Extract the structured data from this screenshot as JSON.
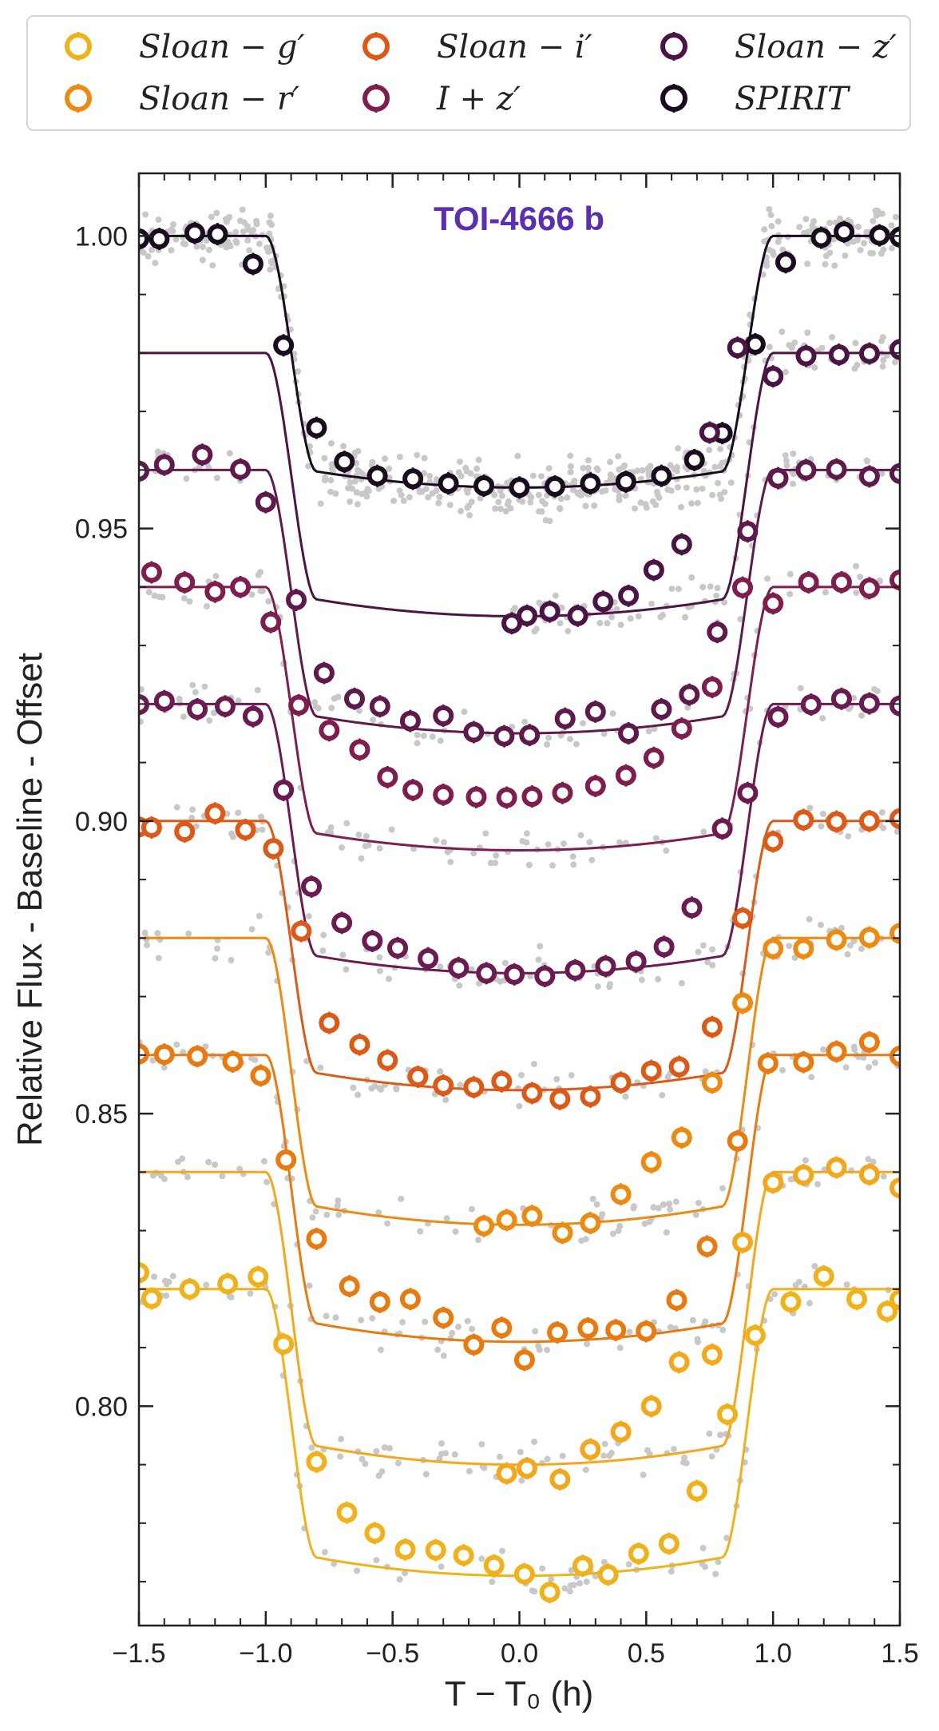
{
  "chart_data": {
    "type": "scatter",
    "title": "TOI-4666 b",
    "title_color": "#5b2fb0",
    "xlabel": "T − T₀ (h)",
    "ylabel": "Relative Flux - Baseline - Offset",
    "xlim": [
      -1.5,
      1.5
    ],
    "ylim": [
      0.7625,
      1.0107
    ],
    "xticks": [
      -1.5,
      -1.0,
      -0.5,
      0.0,
      0.5,
      1.0,
      1.5
    ],
    "xtick_labels": [
      "−1.5",
      "−1.0",
      "−0.5",
      "0.0",
      "0.5",
      "1.0",
      "1.5"
    ],
    "yticks": [
      0.8,
      0.85,
      0.9,
      0.95,
      1.0
    ],
    "ytick_labels": [
      "0.80",
      "0.85",
      "0.90",
      "0.95",
      "1.00"
    ],
    "grid": false,
    "legend_placement": "top, above plot, 3 columns",
    "raw_points_color": "#c8c8c8",
    "legend": [
      {
        "label": "Sloan − g′",
        "color": "#f0b21b"
      },
      {
        "label": "Sloan − r′",
        "color": "#ec8a12"
      },
      {
        "label": "Sloan − i′",
        "color": "#dc5a17"
      },
      {
        "label": "I + z′",
        "color": "#7d1e4e"
      },
      {
        "label": "Sloan − z′",
        "color": "#4a1545"
      },
      {
        "label": "SPIRIT",
        "color": "#1a0b1e"
      }
    ],
    "series": [
      {
        "name": "SPIRIT",
        "color": "#1a0b1e",
        "baseline": 1.0,
        "depth": 0.043,
        "x": [
          -1.5,
          -1.42,
          -1.28,
          -1.19,
          -1.05,
          -0.93,
          -0.8,
          -0.69,
          -0.56,
          -0.42,
          -0.28,
          -0.14,
          0.0,
          0.14,
          0.28,
          0.42,
          0.56,
          0.69,
          0.8,
          0.93,
          1.05,
          1.19,
          1.28,
          1.42,
          1.5
        ],
        "y": [
          0.9995,
          0.9995,
          1.0005,
          1.0003,
          0.9952,
          0.9813,
          0.9672,
          0.9614,
          0.959,
          0.9585,
          0.9577,
          0.9573,
          0.957,
          0.9572,
          0.9577,
          0.958,
          0.959,
          0.9617,
          0.9663,
          0.9815,
          0.9955,
          0.9997,
          1.0007,
          1.0001,
          0.9998
        ]
      },
      {
        "name": "Sloan − z′",
        "color": "#4a1545",
        "baseline": 0.98,
        "depth": 0.045,
        "x0": -1.5,
        "x": [
          -0.03,
          0.03,
          0.12,
          0.23,
          0.33,
          0.43,
          0.53,
          0.64,
          0.75,
          0.86,
          1.0,
          1.13,
          1.26,
          1.38,
          1.5
        ],
        "y": [
          0.9338,
          0.9351,
          0.9358,
          0.9351,
          0.9375,
          0.9385,
          0.9429,
          0.9473,
          0.9664,
          0.9809,
          0.976,
          0.9795,
          0.9797,
          0.9799,
          0.9806
        ]
      },
      {
        "name": "I + z′ (1)",
        "color": "#5e1a4a",
        "baseline": 0.96,
        "depth": 0.045,
        "x": [
          -1.5,
          -1.4,
          -1.25,
          -1.1,
          -1.0,
          -0.88,
          -0.77,
          -0.65,
          -0.55,
          -0.43,
          -0.3,
          -0.18,
          -0.06,
          0.04,
          0.18,
          0.3,
          0.43,
          0.56,
          0.67,
          0.78,
          0.9,
          1.02,
          1.13,
          1.25,
          1.38,
          1.5
        ],
        "y": [
          0.9598,
          0.9609,
          0.9626,
          0.9601,
          0.9545,
          0.9378,
          0.9253,
          0.9209,
          0.9196,
          0.9171,
          0.918,
          0.9152,
          0.9145,
          0.9147,
          0.9175,
          0.9187,
          0.915,
          0.9191,
          0.9216,
          0.9323,
          0.9495,
          0.9586,
          0.96,
          0.9601,
          0.9589,
          0.9594
        ]
      },
      {
        "name": "I + z′ (2)",
        "color": "#7d1e4e",
        "baseline": 0.94,
        "depth": 0.045,
        "x": [
          -1.45,
          -1.32,
          -1.2,
          -1.1,
          -0.98,
          -0.87,
          -0.75,
          -0.63,
          -0.52,
          -0.42,
          -0.3,
          -0.17,
          -0.05,
          0.05,
          0.17,
          0.3,
          0.42,
          0.53,
          0.64,
          0.76,
          0.88,
          1.0,
          1.14,
          1.27,
          1.38,
          1.5
        ],
        "y": [
          0.9425,
          0.9408,
          0.9392,
          0.94,
          0.934,
          0.9198,
          0.9155,
          0.9122,
          0.9075,
          0.9053,
          0.9045,
          0.9041,
          0.904,
          0.9042,
          0.9048,
          0.906,
          0.9078,
          0.9108,
          0.9158,
          0.9229,
          0.9399,
          0.9372,
          0.9408,
          0.9408,
          0.9398,
          0.9412
        ]
      },
      {
        "name": "Sloan − z′ (b)",
        "color": "#6a1b4f",
        "baseline": 0.92,
        "depth": 0.046,
        "x": [
          -1.5,
          -1.4,
          -1.27,
          -1.16,
          -1.05,
          -0.93,
          -0.82,
          -0.7,
          -0.58,
          -0.48,
          -0.36,
          -0.24,
          -0.13,
          -0.02,
          0.1,
          0.22,
          0.34,
          0.46,
          0.57,
          0.68,
          0.8,
          0.9,
          1.02,
          1.15,
          1.27,
          1.38,
          1.5
        ],
        "y": [
          0.9199,
          0.9205,
          0.9191,
          0.9196,
          0.9179,
          0.9053,
          0.8888,
          0.8826,
          0.8795,
          0.8783,
          0.8765,
          0.8749,
          0.874,
          0.8738,
          0.8735,
          0.8745,
          0.8752,
          0.876,
          0.8785,
          0.8852,
          0.8987,
          0.9048,
          0.9178,
          0.9199,
          0.9209,
          0.9201,
          0.9197
        ]
      },
      {
        "name": "Sloan − i′",
        "color": "#dc5a17",
        "baseline": 0.9,
        "depth": 0.046,
        "x": [
          -1.5,
          -1.45,
          -1.32,
          -1.2,
          -1.08,
          -0.97,
          -0.86,
          -0.75,
          -0.63,
          -0.52,
          -0.4,
          -0.3,
          -0.18,
          -0.07,
          0.05,
          0.16,
          0.28,
          0.4,
          0.52,
          0.63,
          0.76,
          0.88,
          1.0,
          1.12,
          1.25,
          1.38,
          1.5
        ],
        "y": [
          0.899,
          0.8989,
          0.8982,
          0.9013,
          0.8985,
          0.8953,
          0.8812,
          0.8655,
          0.8618,
          0.8591,
          0.8563,
          0.8548,
          0.8545,
          0.8555,
          0.8535,
          0.8525,
          0.8529,
          0.8553,
          0.8573,
          0.858,
          0.8648,
          0.8834,
          0.8965,
          0.9002,
          0.8999,
          0.9,
          0.9004
        ]
      },
      {
        "name": "Sloan − r′ (1)",
        "color": "#ec8a12",
        "baseline": 0.88,
        "depth": 0.049,
        "x": [
          -0.14,
          -0.05,
          0.05,
          0.17,
          0.28,
          0.4,
          0.52,
          0.64,
          0.76,
          0.88,
          1.0,
          1.12,
          1.25,
          1.38,
          1.5
        ],
        "y": [
          0.8308,
          0.8318,
          0.8325,
          0.8296,
          0.8313,
          0.8362,
          0.8417,
          0.8459,
          0.8553,
          0.8689,
          0.8782,
          0.8782,
          0.8797,
          0.8801,
          0.8808
        ]
      },
      {
        "name": "Sloan − r′ (2)",
        "color": "#e77a10",
        "baseline": 0.86,
        "depth": 0.049,
        "x": [
          -1.5,
          -1.4,
          -1.27,
          -1.13,
          -1.02,
          -0.92,
          -0.8,
          -0.67,
          -0.55,
          -0.43,
          -0.3,
          -0.18,
          -0.07,
          0.02,
          0.15,
          0.27,
          0.38,
          0.5,
          0.62,
          0.74,
          0.86,
          0.98,
          1.12,
          1.25,
          1.38,
          1.5
        ],
        "y": [
          0.8602,
          0.8601,
          0.8598,
          0.8589,
          0.8565,
          0.8421,
          0.8286,
          0.8205,
          0.8178,
          0.8183,
          0.8151,
          0.8105,
          0.8134,
          0.8079,
          0.8126,
          0.8133,
          0.813,
          0.8128,
          0.8181,
          0.8273,
          0.8453,
          0.8586,
          0.8588,
          0.8606,
          0.8622,
          0.8598
        ]
      },
      {
        "name": "Sloan − g′ (1)",
        "color": "#f3a71d",
        "baseline": 0.84,
        "depth": 0.05,
        "x": [
          -0.05,
          0.03,
          0.16,
          0.28,
          0.4,
          0.52,
          0.63,
          0.76,
          0.88,
          1.0,
          1.12,
          1.25,
          1.38,
          1.5
        ],
        "y": [
          0.7885,
          0.7894,
          0.7875,
          0.7926,
          0.7956,
          0.8,
          0.8075,
          0.8088,
          0.828,
          0.8382,
          0.8395,
          0.8408,
          0.8396,
          0.8373
        ]
      },
      {
        "name": "Sloan − g′ (2)",
        "color": "#f0b21b",
        "baseline": 0.82,
        "depth": 0.049,
        "x": [
          -1.5,
          -1.45,
          -1.3,
          -1.15,
          -1.03,
          -0.93,
          -0.8,
          -0.68,
          -0.57,
          -0.45,
          -0.33,
          -0.22,
          -0.1,
          0.02,
          0.12,
          0.25,
          0.35,
          0.47,
          0.59,
          0.7,
          0.82,
          0.93,
          1.07,
          1.2,
          1.33,
          1.45,
          1.5
        ],
        "y": [
          0.8228,
          0.8184,
          0.82,
          0.8209,
          0.8221,
          0.8106,
          0.7905,
          0.7818,
          0.7783,
          0.7755,
          0.7754,
          0.7745,
          0.7728,
          0.7713,
          0.7682,
          0.7727,
          0.7712,
          0.7748,
          0.7765,
          0.7855,
          0.7986,
          0.8121,
          0.8178,
          0.8222,
          0.8183,
          0.8162,
          0.8182
        ]
      }
    ]
  }
}
